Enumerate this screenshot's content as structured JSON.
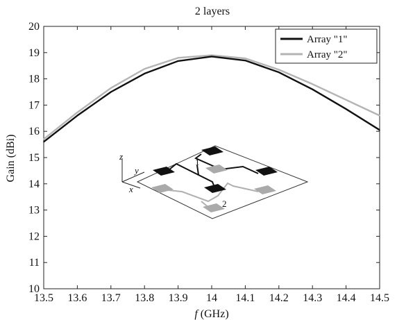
{
  "chart_data": {
    "type": "line",
    "title": "2 layers",
    "xlabel_italic": "f",
    "xlabel_rest": " (GHz)",
    "ylabel": "Gain (dBi)",
    "xlim": [
      13.5,
      14.5
    ],
    "ylim": [
      10,
      20
    ],
    "x_ticks": [
      "13.5",
      "13.6",
      "13.7",
      "13.8",
      "13.9",
      "14",
      "14.1",
      "14.2",
      "14.3",
      "14.4",
      "14.5"
    ],
    "y_ticks": [
      "10",
      "11",
      "12",
      "13",
      "14",
      "15",
      "16",
      "17",
      "18",
      "19",
      "20"
    ],
    "grid": false,
    "legend_position": "top-right",
    "x": [
      13.5,
      13.6,
      13.7,
      13.8,
      13.9,
      14.0,
      14.1,
      14.2,
      14.3,
      14.4,
      14.5
    ],
    "series": [
      {
        "name": "Array \"1\"",
        "color": "#111111",
        "values": [
          15.6,
          16.6,
          17.5,
          18.2,
          18.68,
          18.85,
          18.7,
          18.25,
          17.6,
          16.85,
          16.05
        ]
      },
      {
        "name": "Array \"2\"",
        "color": "#b4b4b4",
        "values": [
          15.7,
          16.72,
          17.65,
          18.38,
          18.8,
          18.9,
          18.78,
          18.35,
          17.8,
          17.2,
          16.6
        ]
      }
    ],
    "inset": {
      "axis_z": "z",
      "axis_y": "y",
      "axis_x": "x",
      "marker_1": "1",
      "marker_2": "2"
    }
  }
}
